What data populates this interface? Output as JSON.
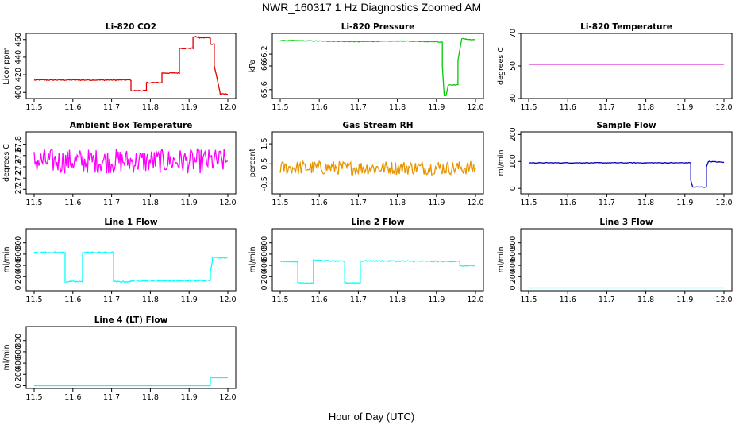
{
  "page": {
    "title": "NWR_160317  1 Hz Diagnostics Zoomed AM",
    "x_caption": "Hour of Day (UTC)"
  },
  "chart_data": [
    {
      "type": "line",
      "title": "Li-820 CO2",
      "ylabel": "Licor ppm",
      "color": "#e00000",
      "xlim": [
        11.5,
        12.0
      ],
      "xticks": [
        11.5,
        11.6,
        11.7,
        11.8,
        11.9,
        12.0
      ],
      "ylim": [
        393,
        467
      ],
      "yticks": [
        400,
        420,
        440,
        460
      ],
      "series": [
        {
          "x": [
            11.5,
            11.75,
            11.75,
            11.79,
            11.79,
            11.83,
            11.83,
            11.86,
            11.86,
            11.875,
            11.875,
            11.91,
            11.91,
            11.925,
            11.925,
            11.955,
            11.955,
            11.965,
            11.965,
            11.98,
            11.98,
            12.0
          ],
          "y": [
            414,
            414,
            402,
            402,
            411,
            411,
            422,
            422,
            422,
            422,
            450,
            450,
            463,
            463,
            462,
            462,
            455,
            455,
            430,
            400,
            398,
            398
          ]
        }
      ],
      "noise": 0.6
    },
    {
      "type": "line",
      "title": "Li-820 Pressure",
      "ylabel": "kPa",
      "color": "#00cc00",
      "xlim": [
        11.5,
        12.0
      ],
      "xticks": [
        11.5,
        11.6,
        11.7,
        11.8,
        11.9,
        12.0
      ],
      "ylim": [
        65.45,
        66.55
      ],
      "yticks": [
        65.6,
        66.0,
        66.2
      ],
      "series": [
        {
          "x": [
            11.5,
            11.6,
            11.7,
            11.8,
            11.9,
            11.915,
            11.915,
            11.92,
            11.925,
            11.93,
            11.93,
            11.955,
            11.955,
            11.965,
            11.965,
            11.975,
            11.975,
            12.0
          ],
          "y": [
            66.43,
            66.42,
            66.41,
            66.42,
            66.41,
            66.4,
            66.0,
            65.5,
            65.5,
            65.68,
            65.68,
            65.68,
            66.1,
            66.46,
            66.46,
            66.46,
            66.45,
            66.44
          ]
        }
      ],
      "noise": 0.006
    },
    {
      "type": "line",
      "title": "Li-820 Temperature",
      "ylabel": "degrees C",
      "color": "#cc00cc",
      "xlim": [
        11.5,
        12.0
      ],
      "xticks": [
        11.5,
        11.6,
        11.7,
        11.8,
        11.9,
        12.0
      ],
      "ylim": [
        30,
        70
      ],
      "yticks": [
        30,
        50,
        70
      ],
      "series": [
        {
          "x": [
            11.5,
            12.0
          ],
          "y": [
            51,
            51
          ]
        }
      ],
      "noise": 0
    },
    {
      "type": "line",
      "title": "Ambient Box Temperature",
      "ylabel": "degrees C",
      "color": "#ff00ff",
      "xlim": [
        11.5,
        12.0
      ],
      "xticks": [
        11.5,
        11.6,
        11.7,
        11.8,
        11.9,
        12.0
      ],
      "ylim": [
        26.92,
        28.02
      ],
      "yticks": [
        27.0,
        27.2,
        27.4,
        27.6,
        27.8
      ],
      "series": [
        {
          "x": [
            11.5,
            12.0
          ],
          "y": [
            27.5,
            27.5
          ]
        }
      ],
      "noise": 0.22
    },
    {
      "type": "line",
      "title": "Gas Stream RH",
      "ylabel": "percent",
      "color": "#e69500",
      "xlim": [
        11.5,
        12.0
      ],
      "xticks": [
        11.5,
        11.6,
        11.7,
        11.8,
        11.9,
        12.0
      ],
      "ylim": [
        -1.0,
        2.1
      ],
      "yticks": [
        -0.5,
        0.5,
        1.5
      ],
      "series": [
        {
          "x": [
            11.5,
            12.0
          ],
          "y": [
            0.3,
            0.3
          ]
        }
      ],
      "noise": 0.35
    },
    {
      "type": "line",
      "title": "Sample Flow",
      "ylabel": "ml/min",
      "color": "#0000bb",
      "xlim": [
        11.5,
        12.0
      ],
      "xticks": [
        11.5,
        11.6,
        11.7,
        11.8,
        11.9,
        12.0
      ],
      "ylim": [
        -20,
        210
      ],
      "yticks": [
        0,
        100,
        200
      ],
      "series": [
        {
          "x": [
            11.5,
            11.915,
            11.915,
            11.92,
            11.955,
            11.955,
            11.96,
            12.0
          ],
          "y": [
            95,
            95,
            30,
            5,
            5,
            80,
            100,
            97
          ]
        }
      ],
      "noise": 1.2
    },
    {
      "type": "line",
      "title": "Line 1 Flow",
      "ylabel": "ml/min",
      "color": "#00ffff",
      "xlim": [
        11.5,
        12.0
      ],
      "xticks": [
        11.5,
        11.6,
        11.7,
        11.8,
        11.9,
        12.0
      ],
      "ylim": [
        -50,
        1050
      ],
      "yticks": [
        0,
        200,
        400,
        600,
        800
      ],
      "series": [
        {
          "x": [
            11.5,
            11.58,
            11.58,
            11.625,
            11.625,
            11.705,
            11.705,
            11.75,
            11.75,
            11.955,
            11.955,
            11.96,
            11.96,
            12.0
          ],
          "y": [
            630,
            630,
            110,
            110,
            630,
            630,
            110,
            110,
            130,
            130,
            300,
            480,
            540,
            540
          ]
        }
      ],
      "noise": 12
    },
    {
      "type": "line",
      "title": "Line 2 Flow",
      "ylabel": "ml/min",
      "color": "#00ffff",
      "xlim": [
        11.5,
        12.0
      ],
      "xticks": [
        11.5,
        11.6,
        11.7,
        11.8,
        11.9,
        12.0
      ],
      "ylim": [
        -50,
        1050
      ],
      "yticks": [
        0,
        200,
        400,
        600,
        800
      ],
      "series": [
        {
          "x": [
            11.5,
            11.545,
            11.545,
            11.585,
            11.585,
            11.665,
            11.665,
            11.705,
            11.705,
            11.96,
            11.96,
            12.0
          ],
          "y": [
            470,
            470,
            90,
            90,
            490,
            470,
            90,
            90,
            480,
            470,
            390,
            390
          ]
        }
      ],
      "noise": 10
    },
    {
      "type": "line",
      "title": "Line 3 Flow",
      "ylabel": "ml/min",
      "color": "#00ffff",
      "xlim": [
        11.5,
        12.0
      ],
      "xticks": [
        11.5,
        11.6,
        11.7,
        11.8,
        11.9,
        12.0
      ],
      "ylim": [
        -50,
        1050
      ],
      "yticks": [
        0,
        200,
        400,
        600,
        800
      ],
      "series": [
        {
          "x": [
            11.5,
            12.0
          ],
          "y": [
            0,
            0
          ]
        }
      ],
      "noise": 0
    },
    {
      "type": "line",
      "title": "Line 4 (LT) Flow",
      "ylabel": "ml/min",
      "color": "#00ffff",
      "xlim": [
        11.5,
        12.0
      ],
      "xticks": [
        11.5,
        11.6,
        11.7,
        11.8,
        11.9,
        12.0
      ],
      "ylim": [
        -50,
        1050
      ],
      "yticks": [
        0,
        200,
        400,
        600,
        800
      ],
      "series": [
        {
          "x": [
            11.5,
            11.955,
            11.955,
            12.0
          ],
          "y": [
            0,
            0,
            140,
            140
          ]
        }
      ],
      "noise": 0
    }
  ]
}
